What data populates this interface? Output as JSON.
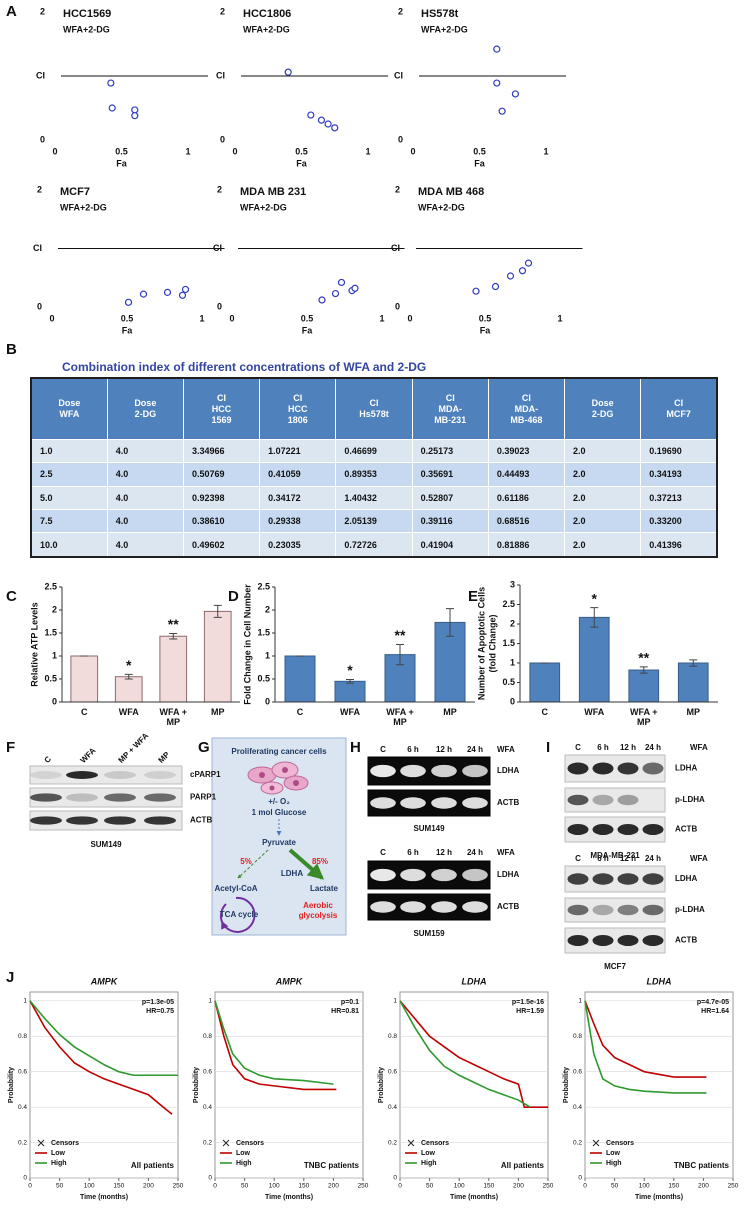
{
  "panel_labels": [
    "A",
    "B",
    "C",
    "D",
    "E",
    "F",
    "G",
    "H",
    "I",
    "J"
  ],
  "chart_data": [
    {
      "type": "scatter",
      "title": "HCC1569",
      "subtitle": "WFA+2-DG",
      "xlabel": "Fa",
      "color": "#2f3bbf",
      "x": [
        0.42,
        0.43,
        0.6,
        0.6
      ],
      "values": [
        0.89,
        0.5,
        0.47,
        0.38
      ],
      "xlim": [
        0,
        1.15
      ],
      "ylim": [
        0,
        2
      ],
      "xticks": [
        0,
        0.5,
        1
      ],
      "yticks": [
        0,
        {
          "value": 1,
          "label": "CI"
        },
        2
      ],
      "hline": 1
    },
    {
      "type": "scatter",
      "title": "HCC1806",
      "subtitle": "WFA+2-DG",
      "xlabel": "Fa",
      "color": "#2f3bbf",
      "x": [
        0.4,
        0.57,
        0.65,
        0.7,
        0.75
      ],
      "values": [
        1.06,
        0.39,
        0.31,
        0.25,
        0.19
      ],
      "xlim": [
        0,
        1.15
      ],
      "ylim": [
        0,
        2
      ],
      "xticks": [
        0,
        0.5,
        1
      ],
      "yticks": [
        0,
        {
          "value": 1,
          "label": "CI"
        },
        2
      ],
      "hline": 1
    },
    {
      "type": "scatter",
      "title": "HS578t",
      "subtitle": "WFA+2-DG",
      "xlabel": "Fa",
      "color": "#2f3bbf",
      "x": [
        0.63,
        0.63,
        0.77,
        0.67
      ],
      "values": [
        1.42,
        0.89,
        0.72,
        0.45
      ],
      "xlim": [
        0,
        1.15
      ],
      "ylim": [
        0,
        2
      ],
      "xticks": [
        0,
        0.5,
        1
      ],
      "yticks": [
        0,
        {
          "value": 1,
          "label": "CI"
        },
        2
      ],
      "hline": 1
    },
    {
      "type": "scatter",
      "title": "MCF7",
      "subtitle": "WFA+2-DG",
      "xlabel": "Fa",
      "color": "#2f3bbf",
      "x": [
        0.51,
        0.61,
        0.77,
        0.87,
        0.89
      ],
      "values": [
        0.08,
        0.22,
        0.25,
        0.2,
        0.3
      ],
      "xlim": [
        0,
        1.15
      ],
      "ylim": [
        0,
        2
      ],
      "xticks": [
        0,
        0.5,
        1
      ],
      "yticks": [
        0,
        {
          "value": 1,
          "label": "CI"
        },
        2
      ],
      "hline": 1
    },
    {
      "type": "scatter",
      "title": "MDA MB 231",
      "subtitle": "WFA+2-DG",
      "xlabel": "Fa",
      "color": "#2f3bbf",
      "x": [
        0.6,
        0.69,
        0.73,
        0.8,
        0.82
      ],
      "values": [
        0.12,
        0.23,
        0.42,
        0.28,
        0.32
      ],
      "xlim": [
        0,
        1.15
      ],
      "ylim": [
        0,
        2
      ],
      "xticks": [
        0,
        0.5,
        1
      ],
      "yticks": [
        0,
        {
          "value": 1,
          "label": "CI"
        },
        2
      ],
      "hline": 1
    },
    {
      "type": "scatter",
      "title": "MDA MB 468",
      "subtitle": "WFA+2-DG",
      "xlabel": "Fa",
      "color": "#2f3bbf",
      "x": [
        0.44,
        0.57,
        0.67,
        0.75,
        0.79
      ],
      "values": [
        0.27,
        0.35,
        0.53,
        0.62,
        0.75
      ],
      "xlim": [
        0,
        1.15
      ],
      "ylim": [
        0,
        2
      ],
      "xticks": [
        0,
        0.5,
        1
      ],
      "yticks": [
        0,
        {
          "value": 1,
          "label": "CI"
        },
        2
      ],
      "hline": 1
    },
    {
      "type": "bar",
      "ylabel": [
        "Relative ATP Levels"
      ],
      "categories": [
        "C",
        "WFA",
        "WFA + MP",
        "MP"
      ],
      "values": [
        1,
        0.55,
        1.43,
        1.97
      ],
      "errors": [
        0,
        0.05,
        0.06,
        0.13
      ],
      "significance": [
        null,
        "*",
        "**",
        null
      ],
      "color": "#f2dcdb",
      "edgecolor": "#8c6b6b",
      "ylim": [
        0,
        2.5
      ],
      "yticks": [
        0,
        0.5,
        1,
        1.5,
        2,
        2.5
      ]
    },
    {
      "type": "bar",
      "ylabel": [
        "Fold Change in Cell Number"
      ],
      "categories": [
        "C",
        "WFA",
        "WFA + MP",
        "MP"
      ],
      "values": [
        1,
        0.45,
        1.03,
        1.73
      ],
      "errors": [
        0,
        0.04,
        0.22,
        0.3
      ],
      "significance": [
        null,
        "*",
        "**",
        null
      ],
      "color": "#4f81bd",
      "edgecolor": "#385d8a",
      "ylim": [
        0,
        2.5
      ],
      "yticks": [
        0,
        0.5,
        1,
        1.5,
        2,
        2.5
      ]
    },
    {
      "type": "bar",
      "ylabel": [
        "Number of Apoptotic Cells",
        "(fold Change)"
      ],
      "categories": [
        "C",
        "WFA",
        "WFA + MP",
        "MP"
      ],
      "values": [
        1,
        2.17,
        0.82,
        1.0
      ],
      "errors": [
        0,
        0.25,
        0.08,
        0.08
      ],
      "significance": [
        null,
        "*",
        "**",
        null
      ],
      "color": "#4f81bd",
      "edgecolor": "#385d8a",
      "ylim": [
        0,
        3
      ],
      "yticks": [
        0,
        0.5,
        1,
        1.5,
        2,
        2.5,
        3
      ]
    },
    {
      "type": "km",
      "title": "AMPK",
      "annotations": [
        "p=1.3e-05",
        "HR=0.75"
      ],
      "cohort": "All patients",
      "censor_label": "Censors",
      "xlabel": "Time (months)",
      "ylabel": "Probability",
      "xlim": [
        0,
        250
      ],
      "ylim": [
        0,
        1.05
      ],
      "xticks": [
        0,
        50,
        100,
        150,
        200,
        250
      ],
      "yticks": [
        0,
        0.2,
        0.4,
        0.6,
        0.8,
        1
      ],
      "series": [
        {
          "name": "Low",
          "color": "#c00000",
          "x": [
            0,
            25,
            50,
            75,
            100,
            125,
            150,
            175,
            200,
            225,
            240
          ],
          "values": [
            1,
            0.85,
            0.74,
            0.65,
            0.6,
            0.56,
            0.53,
            0.5,
            0.47,
            0.4,
            0.36
          ]
        },
        {
          "name": "High",
          "color": "#2e9a2e",
          "x": [
            0,
            25,
            50,
            75,
            100,
            125,
            150,
            175,
            200,
            250
          ],
          "values": [
            1,
            0.9,
            0.81,
            0.74,
            0.69,
            0.64,
            0.6,
            0.58,
            0.58,
            0.58
          ]
        }
      ]
    },
    {
      "type": "km",
      "title": "AMPK",
      "annotations": [
        "p=0.1",
        "HR=0.81"
      ],
      "cohort": "TNBC patients",
      "censor_label": "Censors",
      "xlabel": "Time (months)",
      "ylabel": "Probability",
      "xlim": [
        0,
        250
      ],
      "ylim": [
        0,
        1.05
      ],
      "xticks": [
        0,
        50,
        100,
        150,
        200,
        250
      ],
      "yticks": [
        0,
        0.2,
        0.4,
        0.6,
        0.8,
        1
      ],
      "series": [
        {
          "name": "Low",
          "color": "#c00000",
          "x": [
            0,
            15,
            30,
            50,
            75,
            100,
            150,
            205
          ],
          "values": [
            1,
            0.8,
            0.64,
            0.56,
            0.53,
            0.52,
            0.5,
            0.5
          ]
        },
        {
          "name": "High",
          "color": "#2e9a2e",
          "x": [
            0,
            15,
            30,
            50,
            75,
            100,
            150,
            200
          ],
          "values": [
            1,
            0.84,
            0.7,
            0.62,
            0.58,
            0.56,
            0.55,
            0.53
          ]
        }
      ]
    },
    {
      "type": "km",
      "title": "LDHA",
      "annotations": [
        "p=1.5e-16",
        "HR=1.59"
      ],
      "cohort": "All patients",
      "censor_label": "Censors",
      "xlabel": "Time (months)",
      "ylabel": "Probability",
      "xlim": [
        0,
        250
      ],
      "ylim": [
        0,
        1.05
      ],
      "xticks": [
        0,
        50,
        100,
        150,
        200,
        250
      ],
      "yticks": [
        0,
        0.2,
        0.4,
        0.6,
        0.8,
        1
      ],
      "series": [
        {
          "name": "Low",
          "color": "#c00000",
          "x": [
            0,
            25,
            50,
            75,
            100,
            125,
            150,
            175,
            200,
            210,
            250
          ],
          "values": [
            1,
            0.9,
            0.8,
            0.74,
            0.68,
            0.64,
            0.6,
            0.56,
            0.53,
            0.4,
            0.4
          ]
        },
        {
          "name": "High",
          "color": "#2e9a2e",
          "x": [
            0,
            25,
            50,
            75,
            100,
            125,
            150,
            175,
            200,
            220
          ],
          "values": [
            1,
            0.85,
            0.72,
            0.63,
            0.58,
            0.54,
            0.5,
            0.47,
            0.44,
            0.4
          ]
        }
      ]
    },
    {
      "type": "km",
      "title": "LDHA",
      "annotations": [
        "p=4.7e-05",
        "HR=1.64"
      ],
      "cohort": "TNBC patients",
      "censor_label": "Censors",
      "xlabel": "Time (months)",
      "ylabel": "Probability",
      "xlim": [
        0,
        250
      ],
      "ylim": [
        0,
        1.05
      ],
      "xticks": [
        0,
        50,
        100,
        150,
        200,
        250
      ],
      "yticks": [
        0,
        0.2,
        0.4,
        0.6,
        0.8,
        1
      ],
      "series": [
        {
          "name": "Low",
          "color": "#c00000",
          "x": [
            0,
            15,
            30,
            50,
            75,
            100,
            150,
            205
          ],
          "values": [
            1,
            0.87,
            0.75,
            0.68,
            0.64,
            0.6,
            0.57,
            0.57
          ]
        },
        {
          "name": "High",
          "color": "#2e9a2e",
          "x": [
            0,
            15,
            30,
            50,
            75,
            100,
            150,
            205
          ],
          "values": [
            1,
            0.7,
            0.56,
            0.52,
            0.5,
            0.49,
            0.48,
            0.48
          ]
        }
      ]
    }
  ],
  "table": {
    "title": "Combination index of different concentrations of WFA and 2-DG",
    "header": [
      [
        "Dose",
        "WFA"
      ],
      [
        "Dose",
        "2-DG"
      ],
      [
        "CI",
        "HCC",
        "1569"
      ],
      [
        "CI",
        "HCC",
        "1806"
      ],
      [
        "CI",
        "Hs578t"
      ],
      [
        "CI",
        "MDA-",
        "MB-231"
      ],
      [
        "CI",
        "MDA-",
        "MB-468"
      ],
      [
        "Dose",
        "2-DG"
      ],
      [
        "CI",
        "MCF7"
      ]
    ],
    "rows": [
      [
        "1.0",
        "4.0",
        "3.34966",
        "1.07221",
        "0.46699",
        "0.25173",
        "0.39023",
        "2.0",
        "0.19690"
      ],
      [
        "2.5",
        "4.0",
        "0.50769",
        "0.41059",
        "0.89353",
        "0.35691",
        "0.44493",
        "2.0",
        "0.34193"
      ],
      [
        "5.0",
        "4.0",
        "0.92398",
        "0.34172",
        "1.40432",
        "0.52807",
        "0.61186",
        "2.0",
        "0.37213"
      ],
      [
        "7.5",
        "4.0",
        "0.38610",
        "0.29338",
        "2.05139",
        "0.39116",
        "0.68516",
        "2.0",
        "0.33200"
      ],
      [
        "10.0",
        "4.0",
        "0.49602",
        "0.23035",
        "0.72726",
        "0.41904",
        "0.81886",
        "2.0",
        "0.41396"
      ]
    ]
  },
  "blot_F": {
    "lanes": [
      "C",
      "WFA",
      "MP + WFA",
      "MP"
    ],
    "bands": [
      "cPARP1",
      "PARP1",
      "ACTB"
    ],
    "cell_line": "SUM149"
  },
  "diagram_G": {
    "title": "Proliferating cancer cells",
    "oxygen": "+/- O₂",
    "glucose": "1 mol Glucose",
    "pyruvate": "Pyruvate",
    "pct_low": "5%",
    "pct_high": "85%",
    "enzyme": "LDHA",
    "acetyl": "Acetyl-CoA",
    "lactate": "Lactate",
    "tca": "TCA cycle",
    "aerobic_glycolysis": [
      "Aerobic",
      "glycolysis"
    ]
  },
  "gels_H": [
    {
      "lanes": [
        "C",
        "6 h",
        "12 h",
        "24 h"
      ],
      "treatment": "WFA",
      "bands": [
        "LDHA",
        "ACTB"
      ],
      "cell_line": "SUM149"
    },
    {
      "lanes": [
        "C",
        "6 h",
        "12 h",
        "24 h"
      ],
      "treatment": "WFA",
      "bands": [
        "LDHA",
        "ACTB"
      ],
      "cell_line": "SUM159"
    }
  ],
  "blots_I": [
    {
      "lanes": [
        "C",
        "6 h",
        "12 h",
        "24 h"
      ],
      "treatment": "WFA",
      "bands": [
        "LDHA",
        "p-LDHA",
        "ACTB"
      ],
      "cell_line": "MDA-MB-231"
    },
    {
      "lanes": [
        "C",
        "6 h",
        "12 h",
        "24 h"
      ],
      "treatment": "WFA",
      "bands": [
        "LDHA",
        "p-LDHA",
        "ACTB"
      ],
      "cell_line": "MCF7"
    }
  ]
}
